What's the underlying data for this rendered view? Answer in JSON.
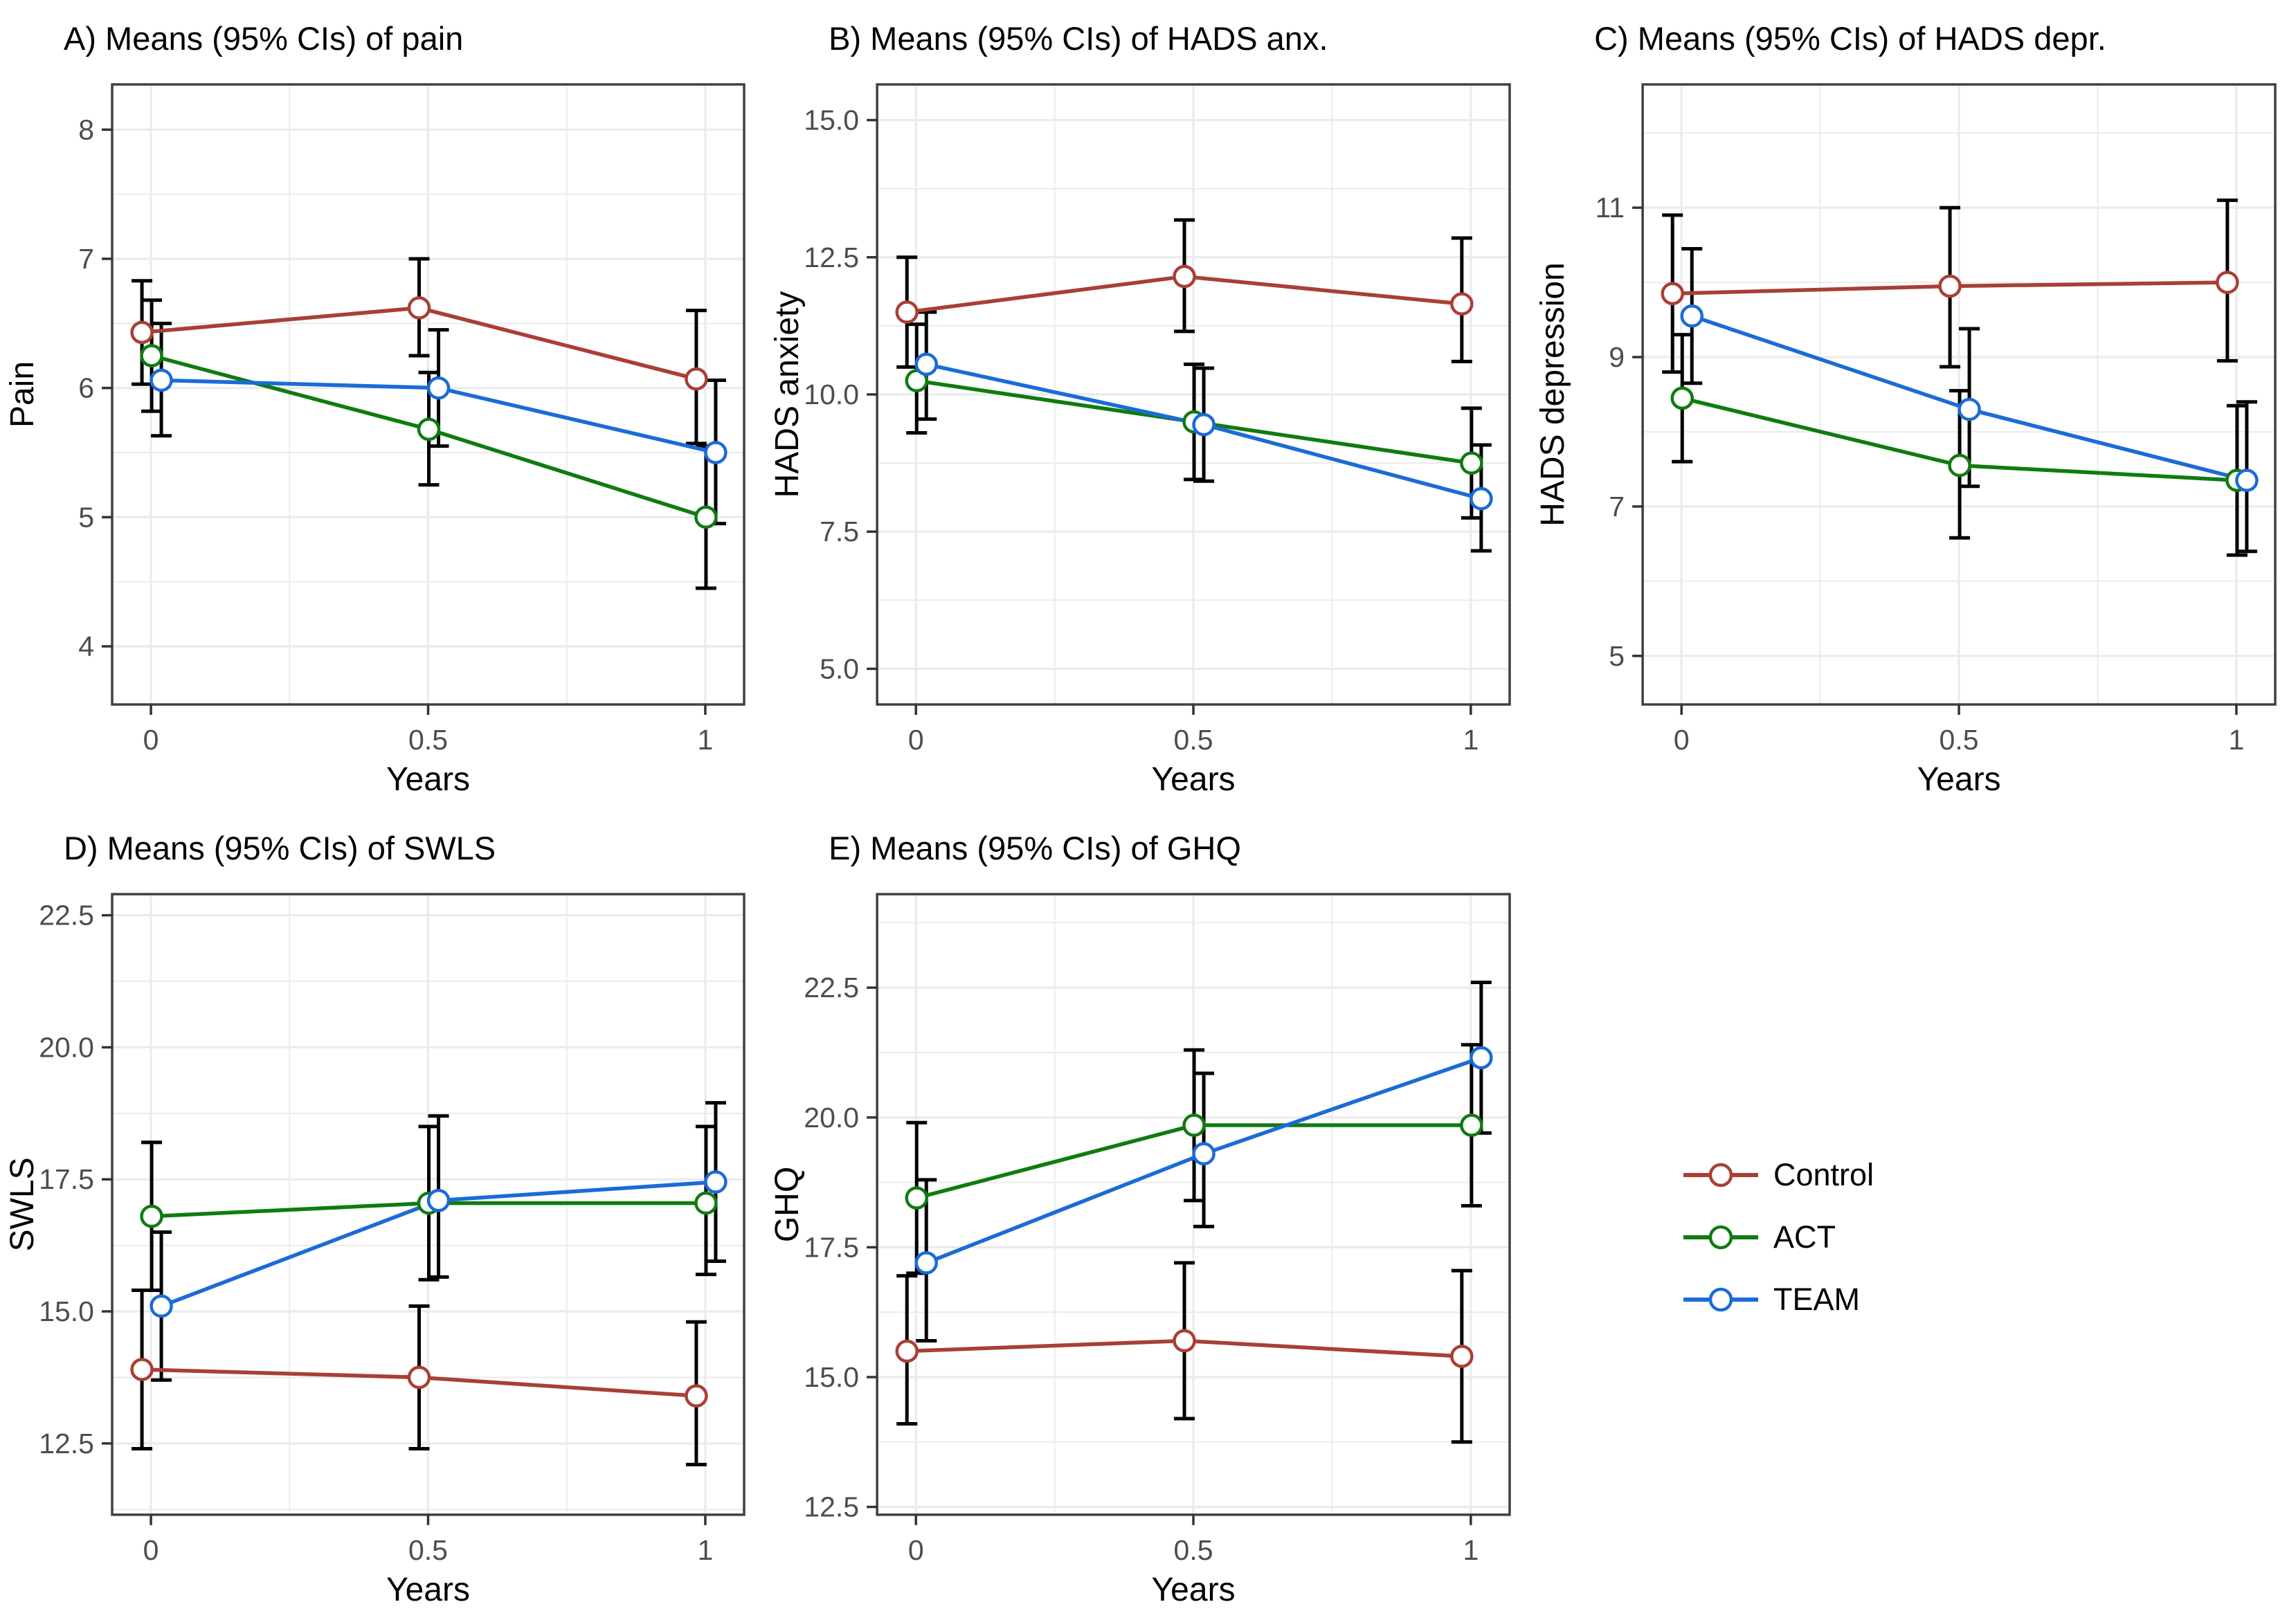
{
  "figure": {
    "background": "#ffffff"
  },
  "theme": {
    "grid_color": "#EBEBEB",
    "border_color": "#404040",
    "tick_color": "#333333",
    "tick_label_color": "#4d4d4d",
    "text_color": "#000000",
    "errorbar_color": "#000000",
    "marker_fill": "#ffffff"
  },
  "legend": {
    "entries": [
      {
        "label": "Control",
        "color": "#A93F34"
      },
      {
        "label": "ACT",
        "color": "#107B10"
      },
      {
        "label": "TEAM",
        "color": "#1B6BD8"
      }
    ]
  },
  "chart_data": [
    {
      "id": "A",
      "type": "line",
      "title": "A) Means (95% CIs) of pain",
      "xlabel": "Years",
      "ylabel": "Pain",
      "x": [
        0,
        0.5,
        1
      ],
      "xtick_labels": [
        "0",
        "0.5",
        "1"
      ],
      "xlim": [
        -0.07,
        1.07
      ],
      "xminor": [
        0.25,
        0.75
      ],
      "ylim": [
        3.55,
        8.35
      ],
      "ytick_vals": [
        4,
        5,
        6,
        7,
        8
      ],
      "ytick_labels": [
        "4",
        "5",
        "6",
        "7",
        "8"
      ],
      "yminor": [
        4.5,
        5.5,
        6.5,
        7.5
      ],
      "series": [
        {
          "name": "Control",
          "color": "#A93F34",
          "means": [
            6.43,
            6.62,
            6.07
          ],
          "ci_low": [
            6.03,
            6.25,
            5.57
          ],
          "ci_high": [
            6.83,
            7.0,
            6.6
          ]
        },
        {
          "name": "ACT",
          "color": "#107B10",
          "means": [
            6.25,
            5.68,
            5.0
          ],
          "ci_low": [
            5.82,
            5.25,
            4.45
          ],
          "ci_high": [
            6.68,
            6.12,
            5.55
          ]
        },
        {
          "name": "TEAM",
          "color": "#1B6BD8",
          "means": [
            6.06,
            6.0,
            5.5
          ],
          "ci_low": [
            5.63,
            5.55,
            4.95
          ],
          "ci_high": [
            6.5,
            6.45,
            6.06
          ]
        }
      ]
    },
    {
      "id": "B",
      "type": "line",
      "title": "B) Means (95% CIs) of HADS anx.",
      "xlabel": "Years",
      "ylabel": "HADS anxiety",
      "x": [
        0,
        0.5,
        1
      ],
      "xtick_labels": [
        "0",
        "0.5",
        "1"
      ],
      "xlim": [
        -0.07,
        1.07
      ],
      "xminor": [
        0.25,
        0.75
      ],
      "ylim": [
        4.35,
        15.65
      ],
      "ytick_vals": [
        5.0,
        7.5,
        10.0,
        12.5,
        15.0
      ],
      "ytick_labels": [
        "5.0",
        "7.5",
        "10.0",
        "12.5",
        "15.0"
      ],
      "yminor": [
        6.25,
        8.75,
        11.25,
        13.75
      ],
      "series": [
        {
          "name": "Control",
          "color": "#A93F34",
          "means": [
            11.5,
            12.15,
            11.65
          ],
          "ci_low": [
            10.5,
            11.15,
            10.6
          ],
          "ci_high": [
            12.5,
            13.18,
            12.85
          ]
        },
        {
          "name": "ACT",
          "color": "#107B10",
          "means": [
            10.25,
            9.5,
            8.75
          ],
          "ci_low": [
            9.3,
            8.45,
            7.75
          ],
          "ci_high": [
            11.28,
            10.55,
            9.75
          ]
        },
        {
          "name": "TEAM",
          "color": "#1B6BD8",
          "means": [
            10.55,
            9.45,
            8.1
          ],
          "ci_low": [
            9.55,
            8.42,
            7.15
          ],
          "ci_high": [
            11.5,
            10.48,
            9.08
          ]
        }
      ]
    },
    {
      "id": "C",
      "type": "line",
      "title": "C) Means (95% CIs) of HADS depr.",
      "xlabel": "Years",
      "ylabel": "HADS depression",
      "x": [
        0,
        0.5,
        1
      ],
      "xtick_labels": [
        "0",
        "0.5",
        "1"
      ],
      "xlim": [
        -0.07,
        1.07
      ],
      "xminor": [
        0.25,
        0.75
      ],
      "ylim": [
        4.35,
        12.65
      ],
      "ytick_vals": [
        5,
        7,
        9,
        11
      ],
      "ytick_labels": [
        "5",
        "7",
        "9",
        "11"
      ],
      "yminor": [
        6,
        8,
        10,
        12
      ],
      "series": [
        {
          "name": "Control",
          "color": "#A93F34",
          "means": [
            9.85,
            9.95,
            10.0
          ],
          "ci_low": [
            8.8,
            8.87,
            8.95
          ],
          "ci_high": [
            10.9,
            11.0,
            11.1
          ]
        },
        {
          "name": "ACT",
          "color": "#107B10",
          "means": [
            8.45,
            7.55,
            7.35
          ],
          "ci_low": [
            7.6,
            6.58,
            6.35
          ],
          "ci_high": [
            9.3,
            8.55,
            8.35
          ]
        },
        {
          "name": "TEAM",
          "color": "#1B6BD8",
          "means": [
            9.55,
            8.3,
            7.35
          ],
          "ci_low": [
            8.65,
            7.27,
            6.4
          ],
          "ci_high": [
            10.45,
            9.38,
            8.4
          ]
        }
      ]
    },
    {
      "id": "D",
      "type": "line",
      "title": "D) Means (95% CIs) of SWLS",
      "xlabel": "Years",
      "ylabel": "SWLS",
      "x": [
        0,
        0.5,
        1
      ],
      "xtick_labels": [
        "0",
        "0.5",
        "1"
      ],
      "xlim": [
        -0.07,
        1.07
      ],
      "xminor": [
        0.25,
        0.75
      ],
      "ylim": [
        11.15,
        22.9
      ],
      "ytick_vals": [
        12.5,
        15.0,
        17.5,
        20.0,
        22.5
      ],
      "ytick_labels": [
        "12.5",
        "15.0",
        "17.5",
        "20.0",
        "22.5"
      ],
      "yminor": [
        11.25,
        13.75,
        16.25,
        18.75,
        21.25
      ],
      "series": [
        {
          "name": "Control",
          "color": "#A93F34",
          "means": [
            13.9,
            13.75,
            13.4
          ],
          "ci_low": [
            12.4,
            12.4,
            12.1
          ],
          "ci_high": [
            15.4,
            15.1,
            14.8
          ]
        },
        {
          "name": "ACT",
          "color": "#107B10",
          "means": [
            16.8,
            17.05,
            17.05
          ],
          "ci_low": [
            15.4,
            15.6,
            15.7
          ],
          "ci_high": [
            18.2,
            18.5,
            18.5
          ]
        },
        {
          "name": "TEAM",
          "color": "#1B6BD8",
          "means": [
            15.1,
            17.1,
            17.45
          ],
          "ci_low": [
            13.7,
            15.65,
            15.95
          ],
          "ci_high": [
            16.5,
            18.7,
            18.95
          ]
        }
      ]
    },
    {
      "id": "E",
      "type": "line",
      "title": "E) Means (95% CIs) of GHQ",
      "xlabel": "Years",
      "ylabel": "GHQ",
      "x": [
        0,
        0.5,
        1
      ],
      "xtick_labels": [
        "0",
        "0.5",
        "1"
      ],
      "xlim": [
        -0.07,
        1.07
      ],
      "xminor": [
        0.25,
        0.75
      ],
      "ylim": [
        12.35,
        24.3
      ],
      "ytick_vals": [
        12.5,
        15.0,
        17.5,
        20.0,
        22.5
      ],
      "ytick_labels": [
        "12.5",
        "15.0",
        "17.5",
        "20.0",
        "22.5"
      ],
      "yminor": [
        13.75,
        16.25,
        18.75,
        21.25,
        23.75
      ],
      "series": [
        {
          "name": "Control",
          "color": "#A93F34",
          "means": [
            15.5,
            15.7,
            15.4
          ],
          "ci_low": [
            14.1,
            14.2,
            13.75
          ],
          "ci_high": [
            16.95,
            17.2,
            17.05
          ]
        },
        {
          "name": "ACT",
          "color": "#107B10",
          "means": [
            18.45,
            19.85,
            19.85
          ],
          "ci_low": [
            17.0,
            18.4,
            18.3
          ],
          "ci_high": [
            19.9,
            21.3,
            21.4
          ]
        },
        {
          "name": "TEAM",
          "color": "#1B6BD8",
          "means": [
            17.2,
            19.3,
            21.15
          ],
          "ci_low": [
            15.7,
            17.9,
            19.7
          ],
          "ci_high": [
            18.8,
            20.85,
            22.6
          ]
        }
      ]
    }
  ]
}
